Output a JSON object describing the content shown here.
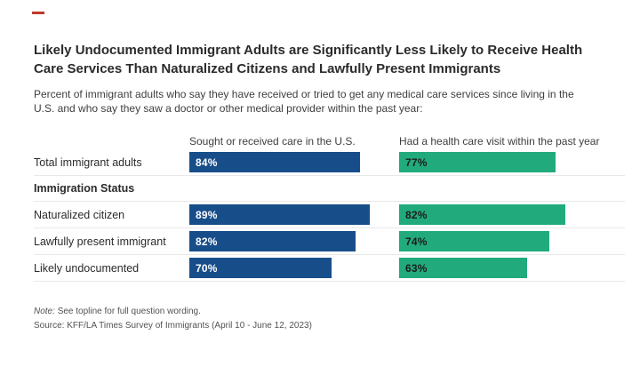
{
  "colors": {
    "blue": "#174e8a",
    "green": "#21ab7d",
    "accent_red": "#c0392b"
  },
  "title": "Likely Undocumented Immigrant Adults are Significantly Less Likely to Receive Health Care Services Than Naturalized Citizens and Lawfully Present Immigrants",
  "subtitle": "Percent of immigrant adults who say they have received or tried to get any medical care services since living in the U.S. and who say they saw a doctor or other medical provider within the past year:",
  "columns": [
    {
      "label": "Sought or received care in the U.S."
    },
    {
      "label": "Had a health care visit within the past year"
    }
  ],
  "section_header": "Immigration Status",
  "rows": [
    {
      "label": "Total immigrant adults",
      "sought_pct": 84,
      "sought_label": "84%",
      "visit_pct": 77,
      "visit_label": "77%"
    },
    {
      "label": "Naturalized citizen",
      "sought_pct": 89,
      "sought_label": "89%",
      "visit_pct": 82,
      "visit_label": "82%"
    },
    {
      "label": "Lawfully present immigrant",
      "sought_pct": 82,
      "sought_label": "82%",
      "visit_pct": 74,
      "visit_label": "74%"
    },
    {
      "label": "Likely undocumented",
      "sought_pct": 70,
      "sought_label": "70%",
      "visit_pct": 63,
      "visit_label": "63%"
    }
  ],
  "footer": {
    "note_label": "Note:",
    "note_text": "See topline for full question wording.",
    "source": "Source: KFF/LA Times Survey of Immigrants (April 10 - June 12, 2023)"
  },
  "chart_data": {
    "type": "bar",
    "orientation": "horizontal",
    "title": "Likely Undocumented Immigrant Adults are Significantly Less Likely to Receive Health Care Services Than Naturalized Citizens and Lawfully Present Immigrants",
    "subtitle": "Percent of immigrant adults who say they have received or tried to get any medical care services since living in the U.S. and who say they saw a doctor or other medical provider within the past year:",
    "categories": [
      "Total immigrant adults",
      "Naturalized citizen",
      "Lawfully present immigrant",
      "Likely undocumented"
    ],
    "group_label": "Immigration Status",
    "series": [
      {
        "name": "Sought or received care in the U.S.",
        "color": "#174e8a",
        "values": [
          84,
          89,
          82,
          70
        ]
      },
      {
        "name": "Had a health care visit within the past year",
        "color": "#21ab7d",
        "values": [
          77,
          82,
          74,
          63
        ]
      }
    ],
    "value_format": "percent",
    "xlim": [
      0,
      100
    ],
    "grid": false,
    "legend_position": "column-headers-above-bars",
    "data_labels": "inside-bar-left",
    "annotations": [
      "Note: See topline for full question wording.",
      "Source: KFF/LA Times Survey of Immigrants (April 10 - June 12, 2023)"
    ]
  }
}
